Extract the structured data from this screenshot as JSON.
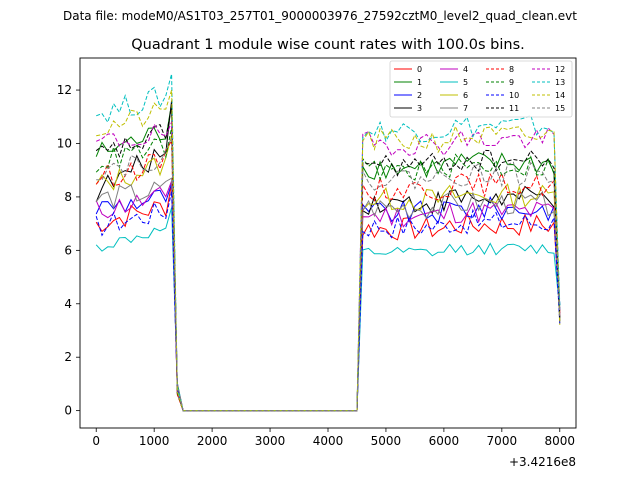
{
  "header": {
    "data_file": "Data file: modeM0/AS1T03_257T01_9000003976_27592cztM0_level2_quad_clean.evt"
  },
  "chart_data": {
    "type": "line",
    "title": "Quadrant 1 module wise count rates with 100.0s bins.",
    "xlabel": "",
    "ylabel": "",
    "x_offset_label": "+3.4216e8",
    "xlim": [
      -280,
      8280
    ],
    "ylim": [
      -0.65,
      13.2
    ],
    "xticks": [
      0,
      1000,
      2000,
      3000,
      4000,
      5000,
      6000,
      7000,
      8000
    ],
    "xtick_labels": [
      "0",
      "1000",
      "2000",
      "3000",
      "4000",
      "5000",
      "6000",
      "7000",
      "8000"
    ],
    "yticks": [
      0,
      2,
      4,
      6,
      8,
      10,
      12
    ],
    "ytick_labels": [
      "0",
      "2",
      "4",
      "6",
      "8",
      "10",
      "12"
    ],
    "grid": false,
    "legend": {
      "placement": "top-right",
      "columns": 4
    },
    "series": [
      {
        "name": "0",
        "color": "#ff0000",
        "dash": "solid",
        "before": 7.0,
        "peak": 8.5,
        "after": 6.8
      },
      {
        "name": "1",
        "color": "#008000",
        "dash": "solid",
        "before": 9.6,
        "peak": 11.5,
        "after": 9.1
      },
      {
        "name": "2",
        "color": "#0000ff",
        "dash": "solid",
        "before": 7.6,
        "peak": 8.5,
        "after": 7.4
      },
      {
        "name": "3",
        "color": "#000000",
        "dash": "solid",
        "before": 8.2,
        "peak": 11.6,
        "after": 7.8
      },
      {
        "name": "4",
        "color": "#bf00bf",
        "dash": "solid",
        "before": 7.5,
        "peak": 8.6,
        "after": 7.3
      },
      {
        "name": "5",
        "color": "#00bfbf",
        "dash": "solid",
        "before": 6.1,
        "peak": 7.6,
        "after": 5.9
      },
      {
        "name": "6",
        "color": "#bfbf00",
        "dash": "solid",
        "before": 8.4,
        "peak": 10.3,
        "after": 7.9
      },
      {
        "name": "7",
        "color": "#808080",
        "dash": "solid",
        "before": 7.9,
        "peak": 8.7,
        "after": 7.6
      },
      {
        "name": "8",
        "color": "#ff0000",
        "dash": "dashed",
        "before": 8.7,
        "peak": 10.1,
        "after": 8.3
      },
      {
        "name": "9",
        "color": "#008000",
        "dash": "dashed",
        "before": 9.3,
        "peak": 10.6,
        "after": 9.0
      },
      {
        "name": "10",
        "color": "#0000ff",
        "dash": "dashed",
        "before": 6.9,
        "peak": 8.2,
        "after": 6.9
      },
      {
        "name": "11",
        "color": "#000000",
        "dash": "dashed",
        "before": 9.5,
        "peak": 11.4,
        "after": 9.2
      },
      {
        "name": "12",
        "color": "#bf00bf",
        "dash": "dashed",
        "before": 10.0,
        "peak": 10.8,
        "after": 10.0
      },
      {
        "name": "13",
        "color": "#00bfbf",
        "dash": "dashed",
        "before": 11.1,
        "peak": 12.6,
        "after": 10.5
      },
      {
        "name": "14",
        "color": "#bfbf00",
        "dash": "dashed",
        "before": 10.5,
        "peak": 12.0,
        "after": 10.1
      },
      {
        "name": "15",
        "color": "#808080",
        "dash": "dashed",
        "before": 9.0,
        "peak": 10.2,
        "after": 8.7
      }
    ],
    "profile": {
      "start": 0,
      "step": 100,
      "active_1_end": 1300,
      "gap_start": 1500,
      "gap_end": 4500,
      "active_2_start": 4600,
      "active_2_end": 7900,
      "end": 8000,
      "final_value": 3.6,
      "drop_at_1400": 0.8
    }
  }
}
